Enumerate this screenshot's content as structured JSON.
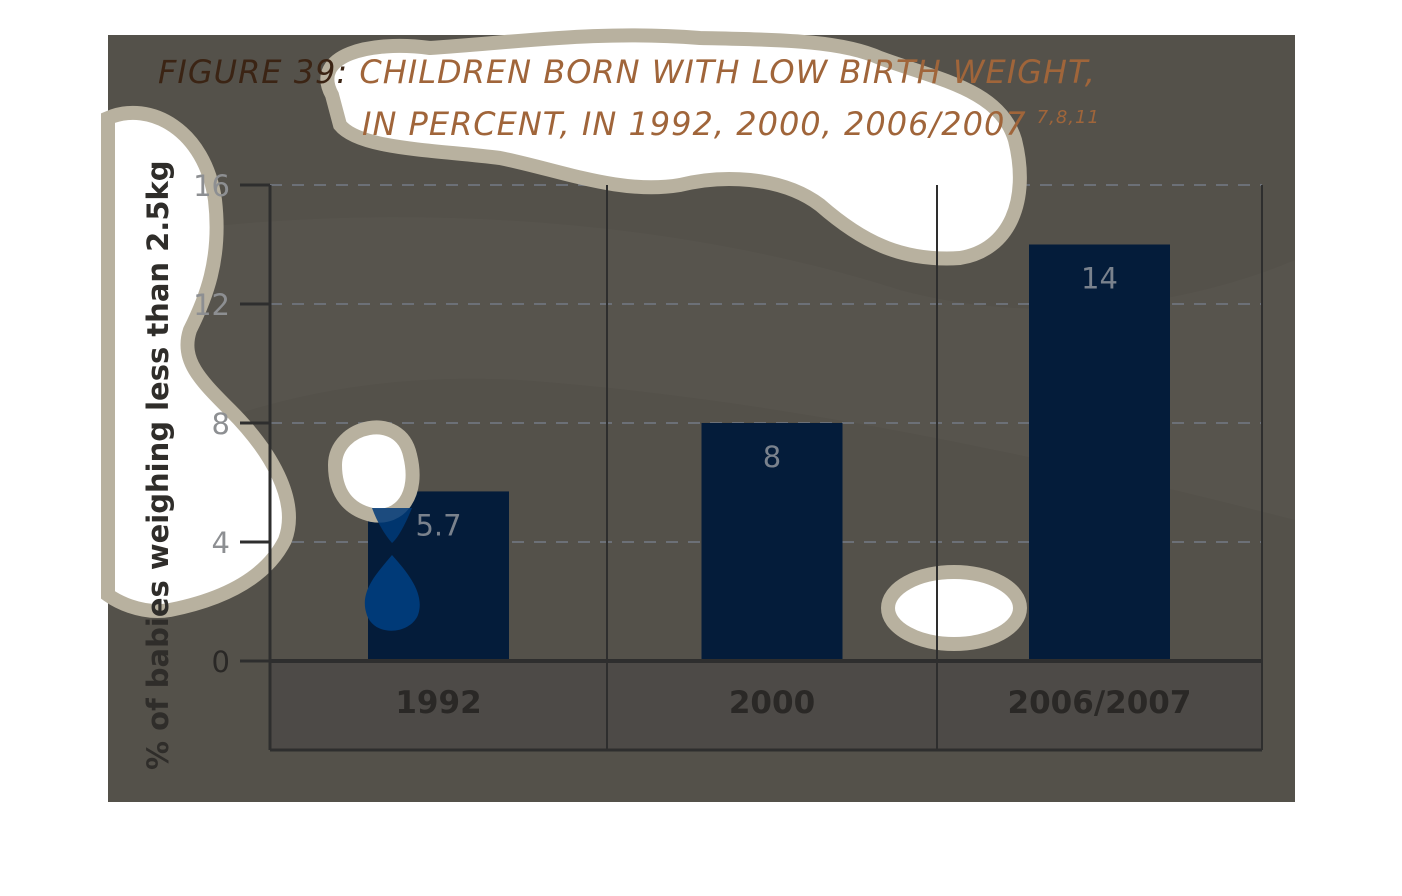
{
  "chart_data": {
    "type": "bar",
    "title_line1": "FIGURE 39: CHILDREN BORN WITH LOW BIRTH WEIGHT,",
    "title_line2": "IN PERCENT, IN 1992, 2000, 2006/2007",
    "title_sup": "7,8,11",
    "ylabel": "% of babies weighing less than 2.5kg",
    "xlabel": "",
    "categories": [
      "1992",
      "2000",
      "2006/2007"
    ],
    "values": [
      5.7,
      8,
      14
    ],
    "data_labels": [
      "5.7",
      "8",
      "14"
    ],
    "yticks": [
      0,
      4,
      8,
      12,
      16
    ],
    "ylim": [
      0,
      16
    ],
    "grid": true,
    "colors": {
      "background": "#54514a",
      "bar": "#041c3a",
      "title_prefix": "#3b2414",
      "title": "#a0653a",
      "grid": "#6c7077",
      "axis": "#2e2e2e",
      "category_cell": "#4d4a47",
      "data_label": "#7a828d",
      "tick_label": "#8d8f92",
      "blob_fill": "#ffffff",
      "blob_ring": "#b8b19f",
      "highlight": "#003a78"
    }
  }
}
